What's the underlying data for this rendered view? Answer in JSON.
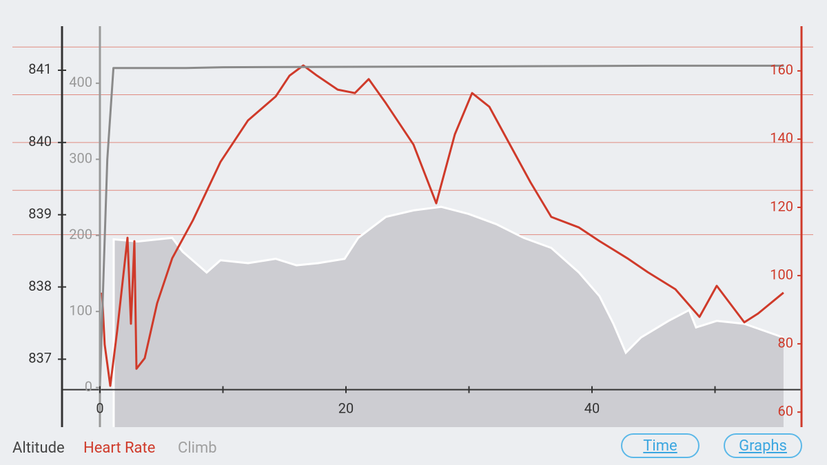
{
  "chart_data": {
    "type": "line",
    "xlim": [
      -3.08,
      57.03
    ],
    "xticks": [
      0,
      20,
      40
    ],
    "x_minor_ticks": [
      10,
      30,
      50
    ],
    "ylim": [
      836.06,
      841.61
    ],
    "yticks": [
      837,
      838,
      839,
      840,
      841
    ],
    "y2lim": [
      55.6,
      173.1
    ],
    "y2ticks": [
      60,
      80,
      100,
      120,
      140,
      160
    ],
    "y2_zone_lines": [
      167,
      153,
      139,
      125,
      112
    ],
    "y3lim": [
      -52,
      475
    ],
    "y3ticks": [
      0,
      100,
      200,
      300,
      400
    ],
    "series": [
      {
        "name": "Altitude",
        "color": "#cdcdd2",
        "legend_color": "#444444",
        "edge_color": "#ffffff",
        "style": "area",
        "axis": "y",
        "x": [
          1.12,
          3.08,
          5.88,
          6.72,
          8.68,
          9.8,
          12.04,
          14.29,
          15.97,
          17.73,
          19.89,
          21.0,
          23.25,
          25.49,
          27.73,
          29.97,
          32.21,
          34.45,
          36.69,
          38.94,
          40.62,
          41.74,
          42.75,
          43.98,
          46.22,
          47.9,
          48.46,
          50.14,
          52.38,
          55.57
        ],
        "values": [
          838.66,
          838.63,
          838.68,
          838.49,
          838.2,
          838.37,
          838.33,
          838.39,
          838.3,
          838.33,
          838.39,
          838.68,
          838.97,
          839.06,
          839.11,
          839.01,
          838.87,
          838.68,
          838.54,
          838.2,
          837.87,
          837.49,
          837.09,
          837.3,
          837.53,
          837.68,
          837.44,
          837.53,
          837.49,
          837.3
        ]
      },
      {
        "name": "Heart Rate",
        "color": "#cf3a2a",
        "style": "line",
        "axis": "y2",
        "x": [
          0.17,
          0.39,
          0.84,
          1.4,
          2.24,
          2.52,
          2.8,
          2.97,
          3.64,
          4.65,
          5.88,
          7.56,
          9.8,
          12.04,
          14.29,
          15.41,
          16.53,
          17.65,
          19.33,
          20.73,
          21.85,
          23.25,
          25.49,
          27.34,
          28.85,
          30.25,
          31.65,
          33.33,
          35.01,
          36.69,
          38.94,
          40.62,
          42.86,
          44.54,
          46.78,
          48.74,
          50.14,
          52.38,
          53.5,
          55.57
        ],
        "values": [
          95,
          79.8,
          67.7,
          83.8,
          111.1,
          85.9,
          110.1,
          72.7,
          75.8,
          91.9,
          105.1,
          116.2,
          133.3,
          145.5,
          152.5,
          158.6,
          161.6,
          158.6,
          154.5,
          153.5,
          157.6,
          150.5,
          138.4,
          121.2,
          141.4,
          153.5,
          149.5,
          138.4,
          127.3,
          117.2,
          114.1,
          110.1,
          105.1,
          101,
          96,
          87.9,
          97,
          86.3,
          88.9,
          95
        ]
      },
      {
        "name": "Climb",
        "color": "#8a8a8a",
        "legend_color": "#a0a0a0",
        "style": "line",
        "axis": "y3",
        "x": [
          0,
          0.3,
          0.6,
          1.1,
          7,
          10,
          30,
          45,
          55.6
        ],
        "values": [
          0,
          150,
          300,
          420,
          420,
          421,
          422,
          423,
          423
        ]
      }
    ]
  },
  "buttons": [
    "Time",
    "Graphs"
  ]
}
